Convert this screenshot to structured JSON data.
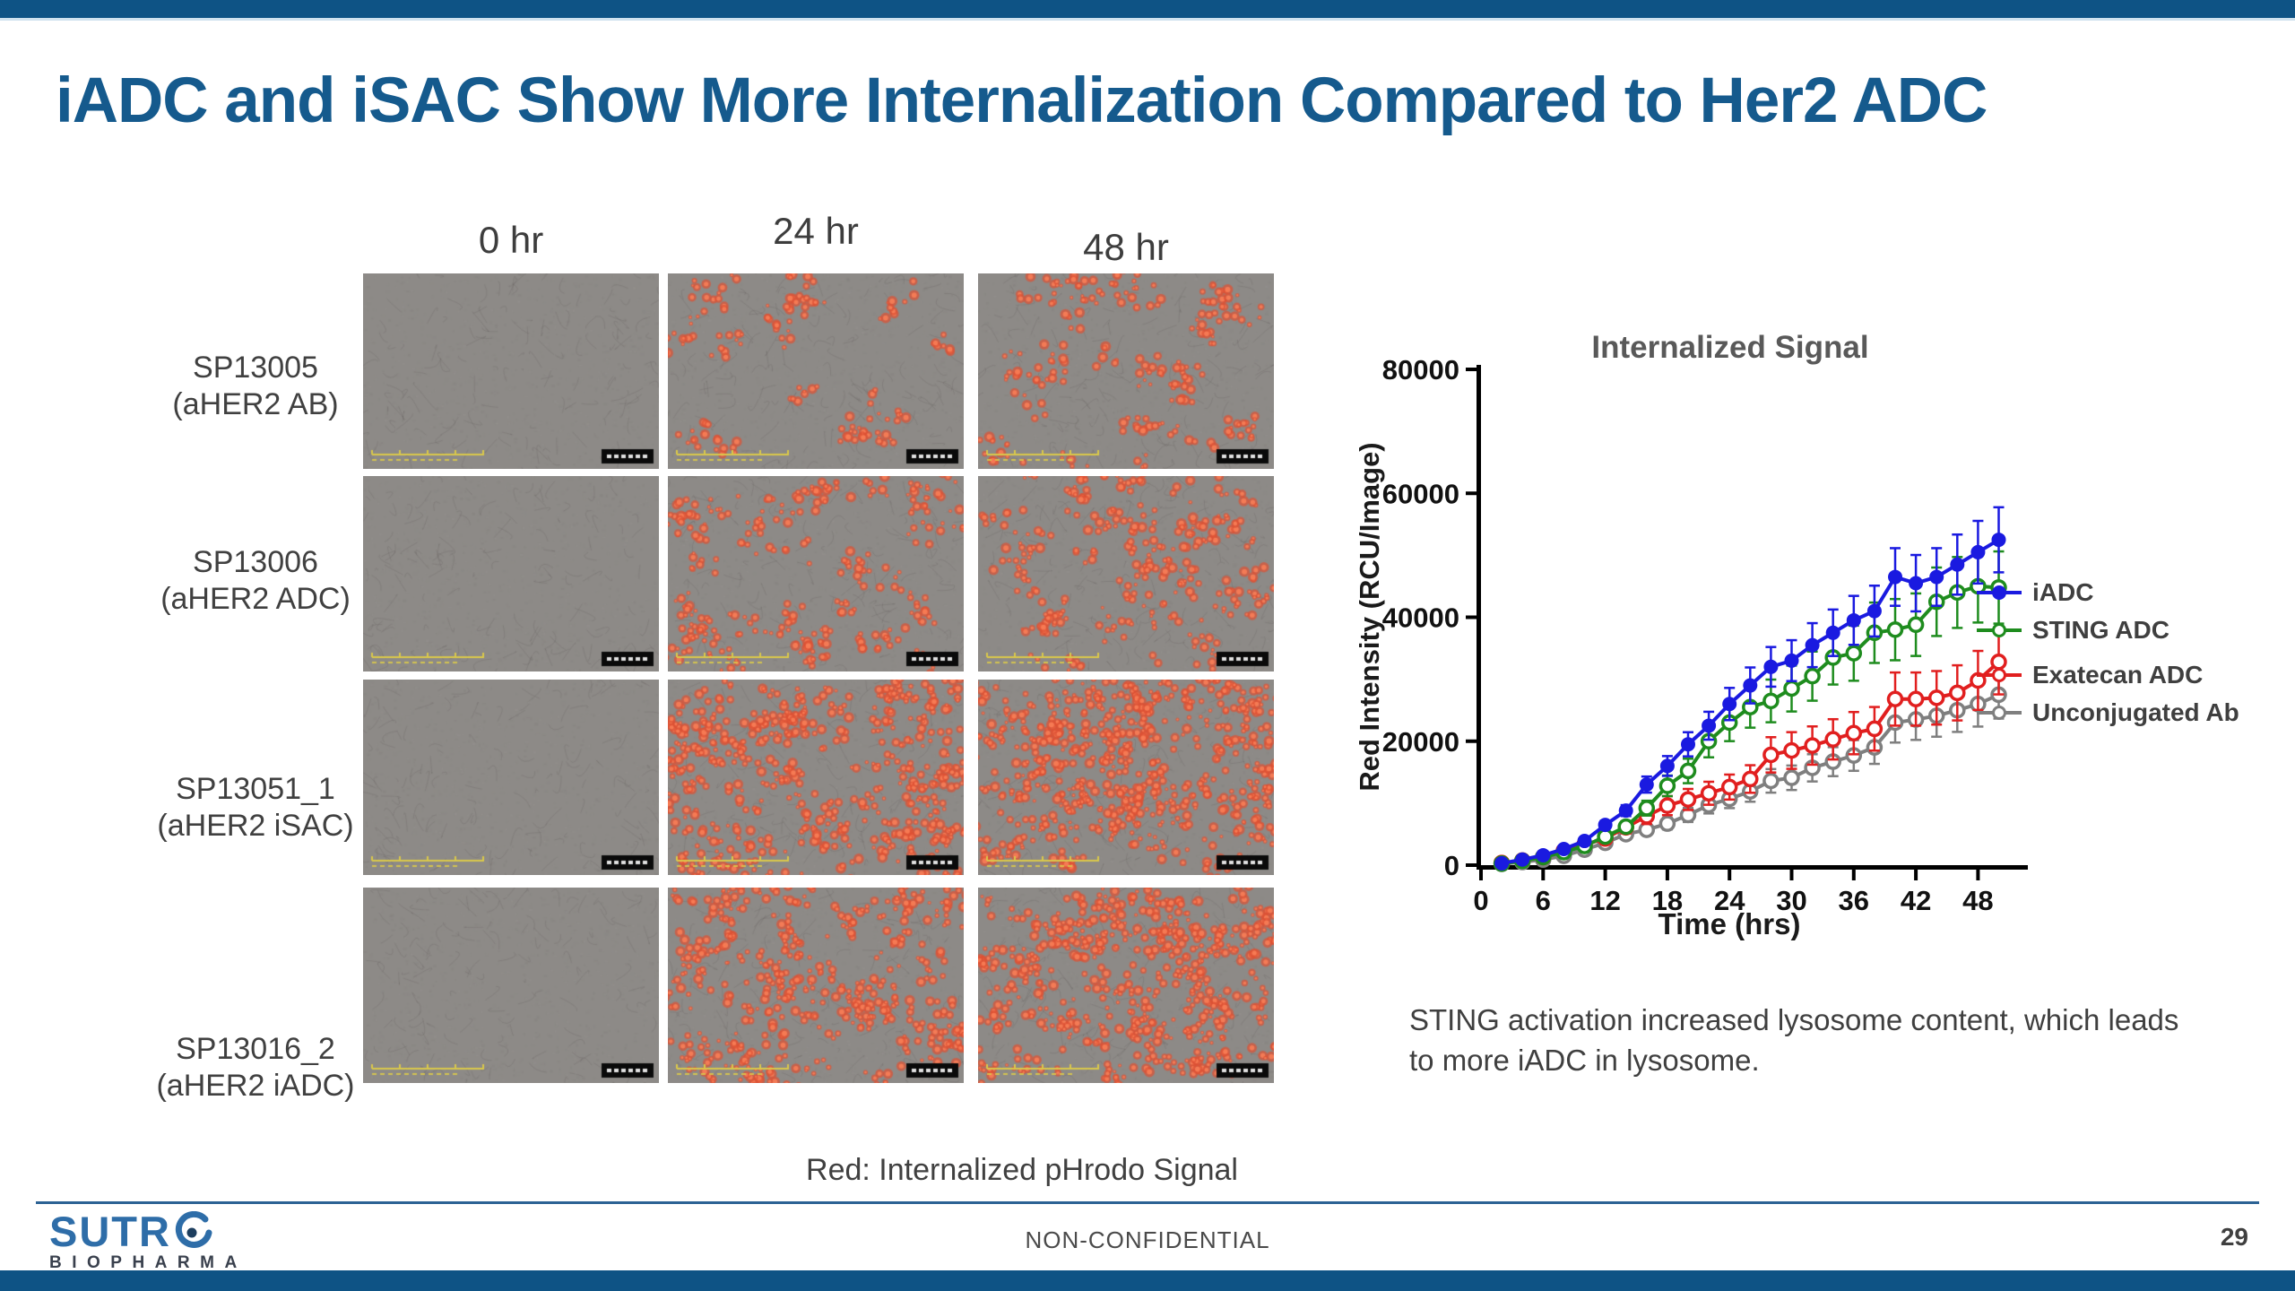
{
  "slide": {
    "title": "iADC and iSAC Show More Internalization Compared to Her2 ADC"
  },
  "colors": {
    "accent_bar": "#0e5385",
    "title_text": "#155a8d",
    "iadc_blue": "#1a1ae0",
    "sting_green": "#1e8c1e",
    "exatecan_red": "#e11f1f",
    "unconjugated_gray": "#7f7f7f",
    "speckle_red": "#e0563a",
    "micrograph_gray": "#8d8a87"
  },
  "microscopy_panel": {
    "col_headers": [
      "0 hr",
      "24 hr",
      "48 hr"
    ],
    "rows": [
      {
        "label_line1": "SP13005",
        "label_line2": "(aHER2 AB)",
        "speckle_density": [
          0,
          26,
          42
        ]
      },
      {
        "label_line1": "SP13006",
        "label_line2": "(aHER2 ADC)",
        "speckle_density": [
          0,
          48,
          62
        ]
      },
      {
        "label_line1": "SP13051_1",
        "label_line2": "(aHER2 iSAC)",
        "speckle_density": [
          0,
          112,
          132
        ]
      },
      {
        "label_line1": "SP13016_2",
        "label_line2": "(aHER2 iADC)",
        "speckle_density": [
          0,
          96,
          116
        ]
      }
    ],
    "caption": "Red: Internalized pHrodo Signal"
  },
  "chart_data": {
    "type": "line",
    "title": "Internalized Signal",
    "xlabel": "Time (hrs)",
    "ylabel": "Red Intensity (RCU/Image)",
    "xlim": [
      0,
      52
    ],
    "ylim": [
      0,
      80000
    ],
    "xticks": [
      0,
      6,
      12,
      18,
      24,
      30,
      36,
      42,
      48
    ],
    "yticks": [
      0,
      20000,
      40000,
      60000,
      80000
    ],
    "legend_position": "right",
    "error_bars": true,
    "x": [
      2,
      4,
      6,
      8,
      10,
      12,
      14,
      16,
      18,
      20,
      22,
      24,
      26,
      28,
      30,
      32,
      34,
      36,
      38,
      40,
      42,
      44,
      46,
      48,
      50
    ],
    "series": [
      {
        "name": "iADC",
        "color": "#1a1ae0",
        "marker": "filled-circle",
        "error_frac": 0.1,
        "values": [
          300,
          900,
          1600,
          2600,
          3900,
          6500,
          8800,
          13000,
          16000,
          19500,
          22500,
          26000,
          29000,
          32000,
          33000,
          35500,
          37500,
          39500,
          41000,
          46500,
          45500,
          46500,
          48500,
          50500,
          52500
        ]
      },
      {
        "name": "STING ADC",
        "color": "#1e8c1e",
        "marker": "open-circle",
        "error_frac": 0.13,
        "values": [
          250,
          700,
          1300,
          2100,
          3100,
          4600,
          6200,
          9200,
          12800,
          15200,
          20000,
          23000,
          25500,
          26500,
          28500,
          30500,
          33500,
          34200,
          37500,
          38000,
          38800,
          42500,
          44000,
          45000,
          44800
        ]
      },
      {
        "name": "Exatecan ADC",
        "color": "#e11f1f",
        "marker": "open-circle",
        "error_frac": 0.16,
        "values": [
          350,
          750,
          1300,
          2300,
          3300,
          4300,
          6100,
          7900,
          9600,
          10600,
          11600,
          12600,
          13900,
          17800,
          18500,
          19300,
          20300,
          21300,
          22000,
          26800,
          26800,
          27000,
          27800,
          29800,
          32800
        ]
      },
      {
        "name": "Unconjugated Ab",
        "color": "#7f7f7f",
        "marker": "open-circle",
        "error_frac": 0.14,
        "values": [
          200,
          500,
          900,
          1500,
          2500,
          3600,
          5000,
          5700,
          6700,
          8100,
          9700,
          10700,
          11900,
          13600,
          14100,
          15700,
          16700,
          17700,
          19000,
          23000,
          23500,
          24100,
          25000,
          26000,
          27500
        ]
      }
    ]
  },
  "note": "STING activation increased lysosome content, which leads to more iADC in lysosome.",
  "footer": {
    "logo_line1": "SUTR",
    "logo_line2": "BIOPHARMA",
    "center_label": "NON-CONFIDENTIAL",
    "page_number": "29"
  }
}
